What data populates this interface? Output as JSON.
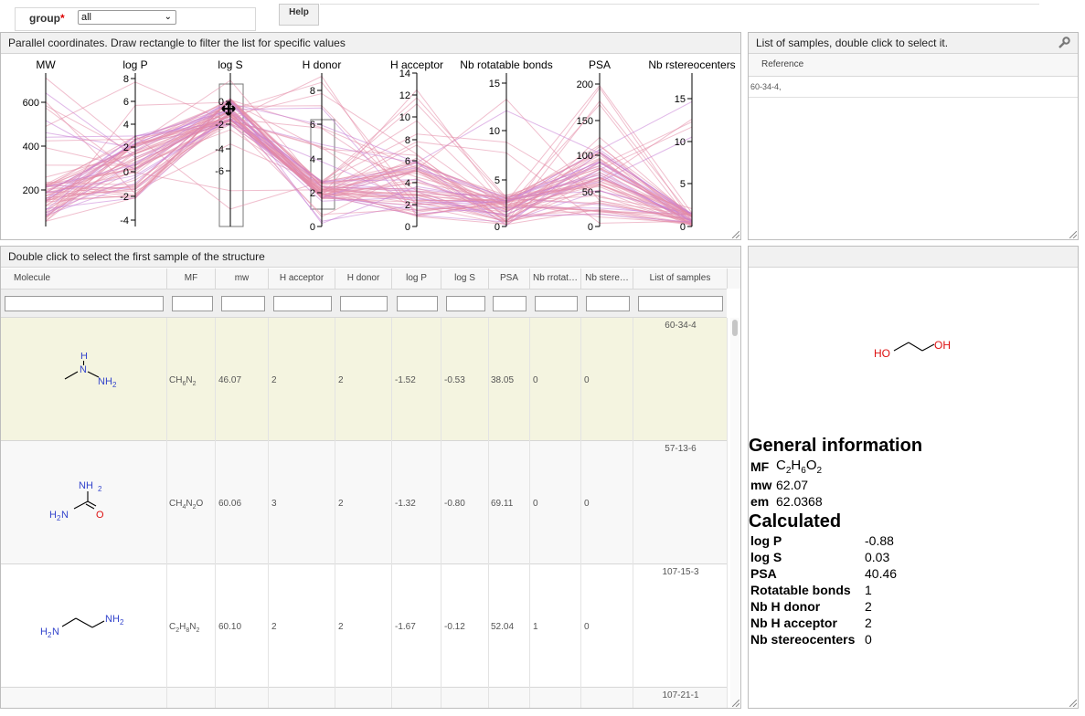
{
  "top": {
    "group_label": "group",
    "group_required": "*",
    "group_value": "all",
    "help_label": "Help"
  },
  "parallel": {
    "title": "Parallel coordinates. Draw rectangle to filter the list for specific values",
    "axes": [
      {
        "label": "MW",
        "ticks": [
          "600",
          "400",
          "200"
        ]
      },
      {
        "label": "log P",
        "ticks": [
          "8",
          "6",
          "4",
          "2",
          "0",
          "-2",
          "-4"
        ]
      },
      {
        "label": "log S",
        "ticks": [
          "0",
          "-2",
          "-4",
          "-6"
        ]
      },
      {
        "label": "H donor",
        "ticks": [
          "8",
          "6",
          "4",
          "2",
          "0"
        ]
      },
      {
        "label": "H acceptor",
        "ticks": [
          "14",
          "12",
          "10",
          "8",
          "6",
          "4",
          "2",
          "0"
        ]
      },
      {
        "label": "Nb rotatable bonds",
        "ticks": [
          "15",
          "10",
          "5",
          "0"
        ]
      },
      {
        "label": "PSA",
        "ticks": [
          "200",
          "150",
          "100",
          "50",
          "0"
        ]
      },
      {
        "label": "Nb rstereocenters",
        "ticks": [
          "15",
          "10",
          "5",
          "0"
        ]
      }
    ]
  },
  "samples_list": {
    "title": "List of samples, double click to select it.",
    "column": "Reference",
    "items": [
      "60-34-4,"
    ]
  },
  "table": {
    "title": "Double click to select the first sample of the structure",
    "columns": [
      "Molecule",
      "MF",
      "mw",
      "H acceptor",
      "H donor",
      "log P",
      "log S",
      "PSA",
      "Nb rrotat…",
      "Nb stere…",
      "List of samples"
    ],
    "rows": [
      {
        "mf": "CH6N2",
        "mw": "46.07",
        "hacc": "2",
        "hdon": "2",
        "logp": "-1.52",
        "logs": "-0.53",
        "psa": "38.05",
        "rot": "0",
        "stereo": "0",
        "sample": "60-34-4",
        "highlight": true
      },
      {
        "mf": "CH4N2O",
        "mw": "60.06",
        "hacc": "3",
        "hdon": "2",
        "logp": "-1.32",
        "logs": "-0.80",
        "psa": "69.11",
        "rot": "0",
        "stereo": "0",
        "sample": "57-13-6",
        "highlight": false
      },
      {
        "mf": "C2H8N2",
        "mw": "60.10",
        "hacc": "2",
        "hdon": "2",
        "logp": "-1.67",
        "logs": "-0.12",
        "psa": "52.04",
        "rot": "1",
        "stereo": "0",
        "sample": "107-15-3",
        "highlight": false
      }
    ],
    "next_sample": "107-21-1"
  },
  "details": {
    "general_title": "General information",
    "mf_label": "MF",
    "mf_value": "C2H6O2",
    "mw_label": "mw",
    "mw_value": "62.07",
    "em_label": "em",
    "em_value": "62.0368",
    "calc_title": "Calculated",
    "props": [
      {
        "label": "log P",
        "value": "-0.88"
      },
      {
        "label": "log S",
        "value": "0.03"
      },
      {
        "label": "PSA",
        "value": "40.46"
      },
      {
        "label": "Rotatable bonds",
        "value": "1"
      },
      {
        "label": "Nb H donor",
        "value": "2"
      },
      {
        "label": "Nb H acceptor",
        "value": "2"
      },
      {
        "label": "Nb stereocenters",
        "value": "0"
      }
    ]
  },
  "structures": {
    "row1": {
      "h": "H",
      "n": "N",
      "nh2": "NH",
      "sub2": "2"
    },
    "row2": {
      "nh2": "NH",
      "sub2": "2",
      "h2n": "H",
      "n": "N",
      "sub2b": "2",
      "o": "O"
    },
    "row3": {
      "h2n": "H",
      "n": "N",
      "sub2": "2",
      "nh2": "NH",
      "sub2b": "2"
    },
    "detail": {
      "ho": "HO",
      "oh": "OH"
    }
  },
  "colors": {
    "line_pink": "#e48aa6",
    "line_violet": "#c77ed6",
    "highlight_row": "#f4f4e0",
    "heteroatom_n": "#3344cc",
    "heteroatom_o": "#dd1111"
  }
}
